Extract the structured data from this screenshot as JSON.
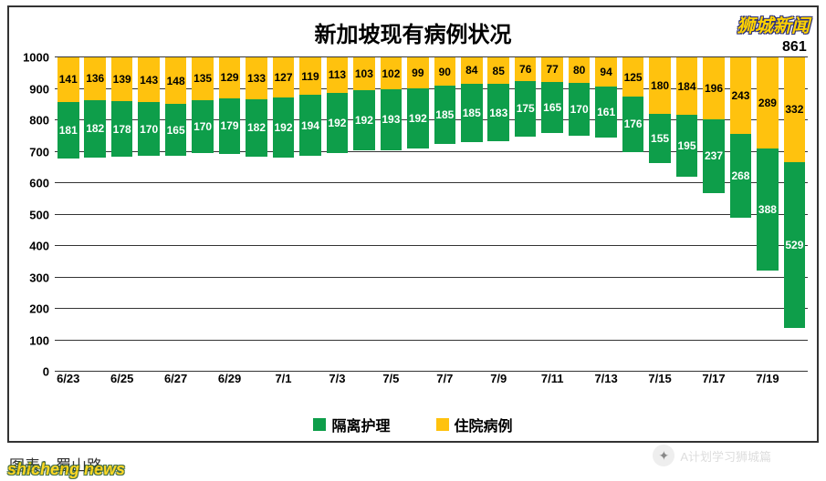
{
  "chart": {
    "type": "stacked-bar",
    "title": "新加坡现有病例状况",
    "title_fontsize": 24,
    "background_color": "#ffffff",
    "border_color": "#333333",
    "grid_color": "#333333",
    "ylim": [
      0,
      1000
    ],
    "ytick_step": 100,
    "y_labels": [
      "0",
      "100",
      "200",
      "300",
      "400",
      "500",
      "600",
      "700",
      "800",
      "900",
      "1000"
    ],
    "label_fontsize": 13,
    "value_fontsize": 12,
    "bar_width": 0.8,
    "categories": [
      "6/23",
      "",
      "6/25",
      "",
      "6/27",
      "",
      "6/29",
      "",
      "7/1",
      "",
      "7/3",
      "",
      "7/5",
      "",
      "7/7",
      "",
      "7/9",
      "",
      "7/11",
      "",
      "7/13",
      "",
      "7/15",
      "",
      "7/17",
      "",
      "7/19",
      ""
    ],
    "series": [
      {
        "name": "隔离护理",
        "color": "#0e9e4a",
        "text_color": "#ffffff",
        "values": [
          181,
          182,
          178,
          170,
          165,
          170,
          179,
          182,
          192,
          194,
          192,
          192,
          193,
          192,
          185,
          185,
          183,
          175,
          165,
          170,
          161,
          176,
          155,
          195,
          237,
          268,
          388,
          529
        ]
      },
      {
        "name": "住院病例",
        "color": "#ffc20e",
        "text_color": "#000000",
        "values": [
          141,
          136,
          139,
          143,
          148,
          135,
          129,
          133,
          127,
          119,
          113,
          103,
          102,
          99,
          90,
          84,
          85,
          76,
          77,
          80,
          94,
          125,
          180,
          184,
          196,
          243,
          289,
          332
        ]
      }
    ],
    "totals": [
      null,
      null,
      null,
      null,
      null,
      null,
      null,
      null,
      null,
      null,
      null,
      null,
      null,
      null,
      null,
      null,
      null,
      null,
      null,
      null,
      null,
      null,
      null,
      null,
      null,
      null,
      null,
      861
    ],
    "legend": {
      "position": "bottom",
      "fontsize": 16
    },
    "watermarks": {
      "top_right": "狮城新闻",
      "bottom_left": "shicheng news",
      "bottom_right": "A计划学习狮城篇"
    },
    "source_text": "图表：蜀山路"
  }
}
